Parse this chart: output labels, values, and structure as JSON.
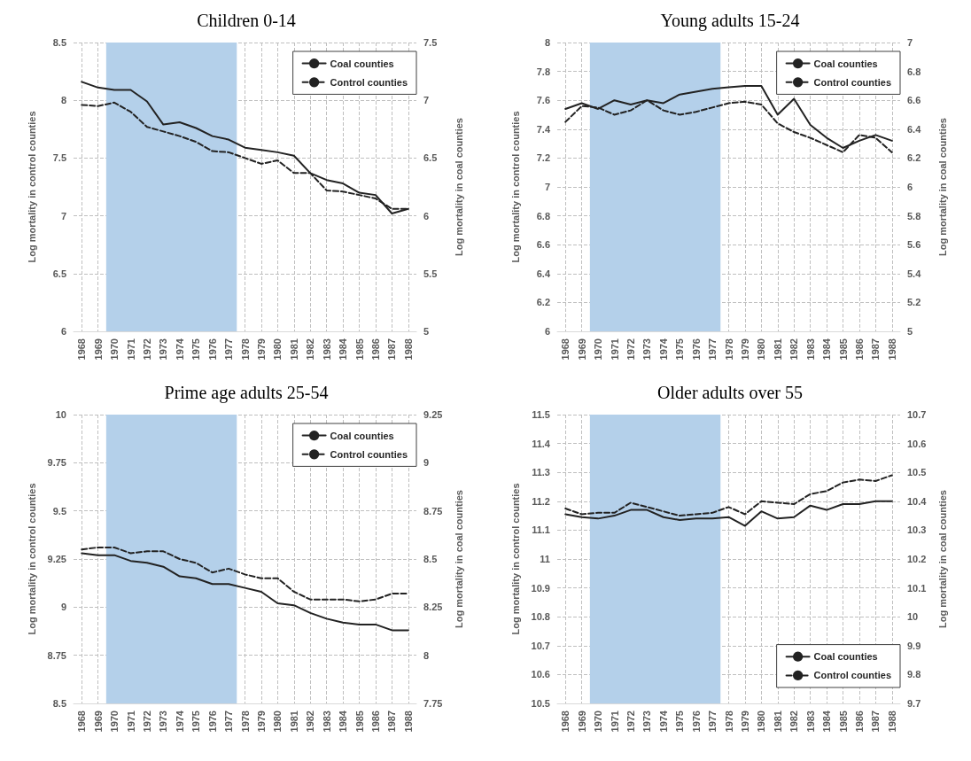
{
  "chart_data": [
    {
      "type": "line",
      "title": "Children 0-14",
      "ylabel": "Log mortality in control counties",
      "y2label": "Log mortality in coal counties",
      "x": [
        1968,
        1969,
        1970,
        1971,
        1972,
        1973,
        1974,
        1975,
        1976,
        1977,
        1978,
        1979,
        1980,
        1981,
        1982,
        1983,
        1984,
        1985,
        1986,
        1987,
        1988
      ],
      "xlim": [
        1967.5,
        1988.5
      ],
      "xticks": [
        1968,
        1969,
        1970,
        1971,
        1972,
        1973,
        1974,
        1975,
        1976,
        1977,
        1978,
        1979,
        1980,
        1981,
        1982,
        1983,
        1984,
        1985,
        1986,
        1987,
        1988
      ],
      "ylim": [
        6,
        8.5
      ],
      "yticks": [
        6,
        6.5,
        7,
        7.5,
        8,
        8.5
      ],
      "y2lim": [
        5,
        7.5
      ],
      "y2ticks": [
        5,
        5.5,
        6,
        6.5,
        7,
        7.5
      ],
      "grid": true,
      "legend": "top right",
      "marker": "none",
      "bands": [
        {
          "axis": "x",
          "from": 1969.5,
          "to": 1977.5,
          "color": "#b4d0ea"
        }
      ],
      "series": [
        {
          "name": "Coal counties",
          "color": "#222222",
          "line_style": "solid",
          "axis": "y2",
          "values": [
            7.16,
            7.11,
            7.09,
            7.09,
            6.99,
            6.79,
            6.81,
            6.76,
            6.69,
            6.66,
            6.59,
            6.57,
            6.55,
            6.52,
            6.37,
            6.31,
            6.28,
            6.2,
            6.18,
            6.02,
            6.06
          ]
        },
        {
          "name": "Control counties",
          "color": "#222222",
          "line_style": "dashed",
          "axis": "y",
          "values": [
            7.96,
            7.95,
            7.98,
            7.9,
            7.77,
            7.73,
            7.69,
            7.64,
            7.56,
            7.55,
            7.5,
            7.45,
            7.48,
            7.37,
            7.37,
            7.22,
            7.21,
            7.18,
            7.15,
            7.06,
            7.06
          ]
        }
      ]
    },
    {
      "type": "line",
      "title": "Young adults 15-24",
      "ylabel": "Log mortality in control counties",
      "y2label": "Log mortality in coal counties",
      "x": [
        1968,
        1969,
        1970,
        1971,
        1972,
        1973,
        1974,
        1975,
        1976,
        1977,
        1978,
        1979,
        1980,
        1981,
        1982,
        1983,
        1984,
        1985,
        1986,
        1987,
        1988
      ],
      "xlim": [
        1967.5,
        1988.5
      ],
      "xticks": [
        1968,
        1969,
        1970,
        1971,
        1972,
        1973,
        1974,
        1975,
        1976,
        1977,
        1978,
        1979,
        1980,
        1981,
        1982,
        1983,
        1984,
        1985,
        1986,
        1987,
        1988
      ],
      "ylim": [
        6,
        8
      ],
      "yticks": [
        6,
        6.2,
        6.4,
        6.6,
        6.8,
        7,
        7.2,
        7.4,
        7.6,
        7.8,
        8
      ],
      "y2lim": [
        5,
        7
      ],
      "y2ticks": [
        5,
        5.2,
        5.4,
        5.6,
        5.8,
        6,
        6.2,
        6.4,
        6.6,
        6.8,
        7
      ],
      "grid": true,
      "legend": "top right",
      "marker": "none",
      "bands": [
        {
          "axis": "x",
          "from": 1969.5,
          "to": 1977.5,
          "color": "#b4d0ea"
        }
      ],
      "series": [
        {
          "name": "Coal counties",
          "color": "#222222",
          "line_style": "solid",
          "axis": "y2",
          "values": [
            6.54,
            6.58,
            6.54,
            6.6,
            6.57,
            6.6,
            6.58,
            6.64,
            6.66,
            6.68,
            6.69,
            6.7,
            6.7,
            6.5,
            6.61,
            6.43,
            6.34,
            6.27,
            6.32,
            6.36,
            6.32
          ]
        },
        {
          "name": "Control counties",
          "color": "#222222",
          "line_style": "dashed",
          "axis": "y",
          "values": [
            7.45,
            7.56,
            7.55,
            7.5,
            7.53,
            7.6,
            7.53,
            7.5,
            7.52,
            7.55,
            7.58,
            7.59,
            7.57,
            7.44,
            7.38,
            7.34,
            7.29,
            7.24,
            7.36,
            7.34,
            7.24
          ]
        }
      ]
    },
    {
      "type": "line",
      "title": "Prime age adults 25-54",
      "ylabel": "Log mortality in control counties",
      "y2label": "Log mortality in coal counties",
      "x": [
        1968,
        1969,
        1970,
        1971,
        1972,
        1973,
        1974,
        1975,
        1976,
        1977,
        1978,
        1979,
        1980,
        1981,
        1982,
        1983,
        1984,
        1985,
        1986,
        1987,
        1988
      ],
      "xlim": [
        1967.5,
        1988.5
      ],
      "xticks": [
        1968,
        1969,
        1970,
        1971,
        1972,
        1973,
        1974,
        1975,
        1976,
        1977,
        1978,
        1979,
        1980,
        1981,
        1982,
        1983,
        1984,
        1985,
        1986,
        1987,
        1988
      ],
      "ylim": [
        8.5,
        10
      ],
      "yticks": [
        8.5,
        8.75,
        9,
        9.25,
        9.5,
        9.75,
        10
      ],
      "y2lim": [
        7.75,
        9.25
      ],
      "y2ticks": [
        7.75,
        8,
        8.25,
        8.5,
        8.75,
        9,
        9.25
      ],
      "grid": true,
      "legend": "top right",
      "marker": "none",
      "bands": [
        {
          "axis": "x",
          "from": 1969.5,
          "to": 1977.5,
          "color": "#b4d0ea"
        }
      ],
      "series": [
        {
          "name": "Coal counties",
          "color": "#222222",
          "line_style": "solid",
          "axis": "y2",
          "values": [
            8.53,
            8.52,
            8.52,
            8.49,
            8.48,
            8.46,
            8.41,
            8.4,
            8.37,
            8.37,
            8.35,
            8.33,
            8.27,
            8.26,
            8.22,
            8.19,
            8.17,
            8.16,
            8.16,
            8.13,
            8.13
          ]
        },
        {
          "name": "Control counties",
          "color": "#222222",
          "line_style": "dashed",
          "axis": "y",
          "values": [
            9.3,
            9.31,
            9.31,
            9.28,
            9.29,
            9.29,
            9.25,
            9.23,
            9.18,
            9.2,
            9.17,
            9.15,
            9.15,
            9.08,
            9.04,
            9.04,
            9.04,
            9.03,
            9.04,
            9.07,
            9.07
          ]
        }
      ]
    },
    {
      "type": "line",
      "title": "Older adults over 55",
      "ylabel": "Log mortality in control counties",
      "y2label": "Log mortality in coal counties",
      "x": [
        1968,
        1969,
        1970,
        1971,
        1972,
        1973,
        1974,
        1975,
        1976,
        1977,
        1978,
        1979,
        1980,
        1981,
        1982,
        1983,
        1984,
        1985,
        1986,
        1987,
        1988
      ],
      "xlim": [
        1967.5,
        1988.5
      ],
      "xticks": [
        1968,
        1969,
        1970,
        1971,
        1972,
        1973,
        1974,
        1975,
        1976,
        1977,
        1978,
        1979,
        1980,
        1981,
        1982,
        1983,
        1984,
        1985,
        1986,
        1987,
        1988
      ],
      "ylim": [
        10.5,
        11.5
      ],
      "yticks": [
        10.5,
        10.6,
        10.7,
        10.8,
        10.9,
        11,
        11.1,
        11.2,
        11.3,
        11.4,
        11.5
      ],
      "y2lim": [
        9.7,
        10.7
      ],
      "y2ticks": [
        9.7,
        9.8,
        9.9,
        10,
        10.1,
        10.2,
        10.3,
        10.4,
        10.5,
        10.6,
        10.7
      ],
      "grid": true,
      "legend": "bottom right",
      "marker": "none",
      "bands": [
        {
          "axis": "x",
          "from": 1969.5,
          "to": 1977.5,
          "color": "#b4d0ea"
        }
      ],
      "series": [
        {
          "name": "Coal counties",
          "color": "#222222",
          "line_style": "solid",
          "axis": "y2",
          "values": [
            10.355,
            10.345,
            10.34,
            10.35,
            10.37,
            10.37,
            10.345,
            10.335,
            10.34,
            10.34,
            10.345,
            10.315,
            10.365,
            10.34,
            10.345,
            10.385,
            10.37,
            10.39,
            10.39,
            10.4,
            10.4
          ]
        },
        {
          "name": "Control counties",
          "color": "#222222",
          "line_style": "dashed",
          "axis": "y",
          "values": [
            11.175,
            11.155,
            11.16,
            11.16,
            11.195,
            11.18,
            11.165,
            11.15,
            11.155,
            11.16,
            11.18,
            11.155,
            11.2,
            11.195,
            11.19,
            11.225,
            11.235,
            11.265,
            11.275,
            11.27,
            11.29
          ]
        }
      ]
    }
  ]
}
